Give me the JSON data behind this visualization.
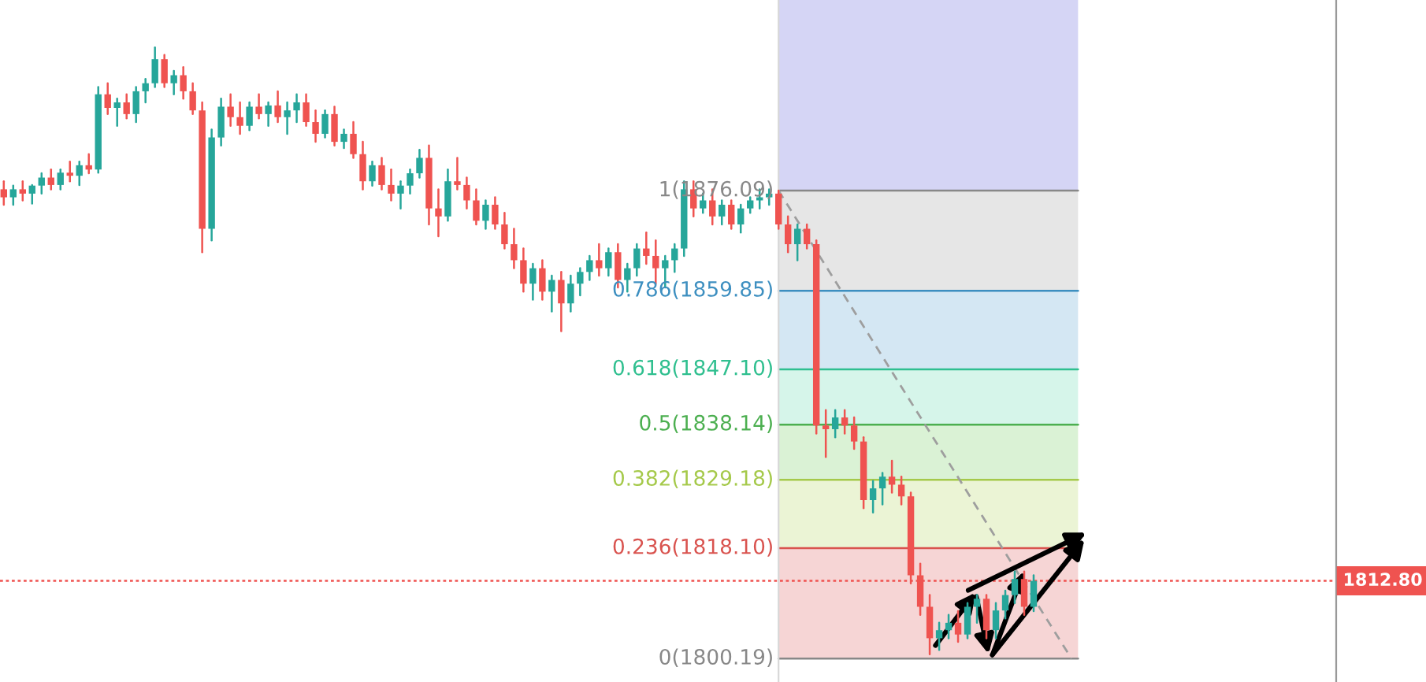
{
  "chart_data": {
    "type": "candlestick",
    "categories": [
      null,
      null,
      null,
      null,
      null,
      null,
      null,
      null,
      null,
      null,
      null,
      null,
      null,
      null,
      null,
      null,
      null,
      null,
      null,
      null,
      null,
      null,
      null,
      null,
      null,
      null,
      null,
      null,
      null,
      null,
      null,
      null,
      null,
      null,
      null,
      null,
      null,
      null,
      null,
      null,
      null,
      null,
      null,
      null,
      null,
      null,
      null,
      null,
      null,
      null,
      null,
      null,
      null,
      null,
      null,
      null,
      null,
      null,
      null,
      null,
      null,
      null,
      null,
      null,
      null,
      null,
      null,
      null,
      null,
      null,
      null,
      null,
      null,
      null,
      null,
      null,
      null,
      null,
      null,
      null,
      null,
      null,
      null,
      null,
      null,
      null,
      null,
      null,
      null,
      null,
      null,
      null,
      null,
      null,
      null,
      null,
      null,
      null,
      null,
      null,
      null,
      null,
      null,
      null,
      null,
      null,
      null,
      null,
      null,
      null,
      null,
      null,
      null,
      null
    ],
    "ohlc": [
      [
        1876.3,
        1877.6,
        1873.8,
        1875.0
      ],
      [
        1875.0,
        1876.9,
        1873.8,
        1876.3
      ],
      [
        1876.3,
        1877.6,
        1874.5,
        1875.6
      ],
      [
        1875.6,
        1877.0,
        1874.0,
        1876.9
      ],
      [
        1876.9,
        1878.9,
        1875.6,
        1878.2
      ],
      [
        1878.2,
        1879.5,
        1876.3,
        1877.0
      ],
      [
        1877.0,
        1879.5,
        1876.3,
        1879.0
      ],
      [
        1879.0,
        1880.8,
        1877.6,
        1878.5
      ],
      [
        1878.5,
        1880.8,
        1877.0,
        1880.2
      ],
      [
        1880.2,
        1882.0,
        1878.9,
        1879.5
      ],
      [
        1879.5,
        1892.9,
        1879.0,
        1891.7
      ],
      [
        1891.7,
        1893.5,
        1888.5,
        1889.5
      ],
      [
        1889.5,
        1891.0,
        1886.6,
        1890.4
      ],
      [
        1890.4,
        1891.7,
        1887.8,
        1888.5
      ],
      [
        1888.5,
        1892.9,
        1887.2,
        1892.2
      ],
      [
        1892.2,
        1894.2,
        1890.4,
        1893.5
      ],
      [
        1893.5,
        1899.3,
        1892.9,
        1897.4
      ],
      [
        1897.4,
        1898.1,
        1892.9,
        1893.5
      ],
      [
        1893.5,
        1895.5,
        1891.7,
        1894.8
      ],
      [
        1894.8,
        1896.1,
        1891.0,
        1892.2
      ],
      [
        1892.2,
        1893.5,
        1888.5,
        1889.1
      ],
      [
        1889.1,
        1890.4,
        1866.1,
        1869.9
      ],
      [
        1869.9,
        1886.0,
        1868.0,
        1884.7
      ],
      [
        1884.7,
        1891.0,
        1883.4,
        1889.7
      ],
      [
        1889.7,
        1891.7,
        1886.6,
        1888.0
      ],
      [
        1888.0,
        1890.4,
        1885.3,
        1886.6
      ],
      [
        1886.6,
        1890.4,
        1885.9,
        1889.7
      ],
      [
        1889.7,
        1891.7,
        1887.8,
        1888.5
      ],
      [
        1888.5,
        1890.4,
        1886.6,
        1889.9
      ],
      [
        1889.9,
        1892.2,
        1887.2,
        1888.0
      ],
      [
        1888.0,
        1890.4,
        1885.3,
        1889.1
      ],
      [
        1889.1,
        1891.7,
        1887.2,
        1890.4
      ],
      [
        1890.4,
        1891.7,
        1886.6,
        1887.2
      ],
      [
        1887.2,
        1889.1,
        1884.0,
        1885.3
      ],
      [
        1885.3,
        1889.1,
        1884.7,
        1888.5
      ],
      [
        1888.5,
        1889.7,
        1883.4,
        1884.0
      ],
      [
        1884.0,
        1886.0,
        1883.0,
        1885.3
      ],
      [
        1885.3,
        1887.2,
        1881.4,
        1882.0
      ],
      [
        1882.0,
        1884.0,
        1876.3,
        1877.6
      ],
      [
        1877.6,
        1880.8,
        1876.9,
        1880.2
      ],
      [
        1880.2,
        1881.4,
        1876.3,
        1877.0
      ],
      [
        1877.0,
        1879.5,
        1874.5,
        1875.6
      ],
      [
        1875.6,
        1877.6,
        1873.2,
        1876.9
      ],
      [
        1876.9,
        1879.5,
        1875.6,
        1878.9
      ],
      [
        1878.9,
        1882.7,
        1878.2,
        1881.4
      ],
      [
        1881.4,
        1883.4,
        1870.6,
        1873.2
      ],
      [
        1873.2,
        1876.3,
        1868.7,
        1871.9
      ],
      [
        1871.9,
        1879.5,
        1871.2,
        1877.6
      ],
      [
        1877.6,
        1881.4,
        1876.3,
        1877.0
      ],
      [
        1877.0,
        1878.2,
        1873.2,
        1874.5
      ],
      [
        1874.5,
        1876.3,
        1870.6,
        1871.2
      ],
      [
        1871.2,
        1874.5,
        1869.9,
        1873.8
      ],
      [
        1873.8,
        1875.0,
        1869.9,
        1870.6
      ],
      [
        1870.6,
        1872.5,
        1866.7,
        1867.4
      ],
      [
        1867.4,
        1869.9,
        1863.5,
        1864.8
      ],
      [
        1864.8,
        1866.7,
        1859.7,
        1861.0
      ],
      [
        1861.0,
        1864.2,
        1858.4,
        1863.5
      ],
      [
        1863.5,
        1864.8,
        1858.4,
        1859.7
      ],
      [
        1859.7,
        1862.3,
        1856.5,
        1861.6
      ],
      [
        1861.6,
        1862.9,
        1853.3,
        1857.8
      ],
      [
        1857.8,
        1862.3,
        1856.5,
        1861.0
      ],
      [
        1861.0,
        1863.5,
        1859.1,
        1862.9
      ],
      [
        1862.9,
        1865.5,
        1861.6,
        1864.8
      ],
      [
        1864.8,
        1867.4,
        1862.3,
        1863.5
      ],
      [
        1863.5,
        1866.7,
        1862.3,
        1866.1
      ],
      [
        1866.1,
        1867.4,
        1860.4,
        1861.6
      ],
      [
        1861.6,
        1864.2,
        1859.7,
        1863.5
      ],
      [
        1863.5,
        1867.4,
        1862.3,
        1866.7
      ],
      [
        1866.7,
        1869.3,
        1864.2,
        1865.5
      ],
      [
        1865.5,
        1868.0,
        1861.0,
        1863.5
      ],
      [
        1863.5,
        1865.5,
        1860.4,
        1864.8
      ],
      [
        1864.8,
        1867.4,
        1862.9,
        1866.7
      ],
      [
        1866.7,
        1877.6,
        1865.5,
        1876.3
      ],
      [
        1876.3,
        1877.6,
        1871.9,
        1873.2
      ],
      [
        1873.2,
        1875.6,
        1872.5,
        1874.5
      ],
      [
        1874.5,
        1876.3,
        1870.6,
        1871.9
      ],
      [
        1871.9,
        1874.5,
        1870.6,
        1873.8
      ],
      [
        1873.8,
        1874.5,
        1869.9,
        1870.6
      ],
      [
        1870.6,
        1873.8,
        1869.3,
        1873.2
      ],
      [
        1873.2,
        1875.0,
        1872.5,
        1874.5
      ],
      [
        1874.5,
        1876.3,
        1873.2,
        1875.0
      ],
      [
        1875.0,
        1876.3,
        1873.8,
        1875.6
      ],
      [
        1875.6,
        1876.1,
        1869.9,
        1870.6
      ],
      [
        1870.6,
        1871.9,
        1866.1,
        1867.4
      ],
      [
        1867.4,
        1870.6,
        1864.8,
        1869.9
      ],
      [
        1869.9,
        1870.6,
        1866.7,
        1867.4
      ],
      [
        1867.4,
        1868.0,
        1836.7,
        1838.0
      ],
      [
        1838.0,
        1840.5,
        1832.9,
        1837.4
      ],
      [
        1837.4,
        1840.5,
        1836.1,
        1839.3
      ],
      [
        1839.3,
        1840.5,
        1836.7,
        1838.0
      ],
      [
        1838.0,
        1839.3,
        1834.2,
        1835.4
      ],
      [
        1835.4,
        1836.1,
        1824.6,
        1825.9
      ],
      [
        1825.9,
        1829.0,
        1823.9,
        1827.8
      ],
      [
        1827.8,
        1830.3,
        1825.2,
        1829.7
      ],
      [
        1829.7,
        1832.3,
        1827.1,
        1828.4
      ],
      [
        1828.4,
        1829.7,
        1825.2,
        1826.5
      ],
      [
        1826.5,
        1827.1,
        1812.4,
        1813.7
      ],
      [
        1813.7,
        1815.6,
        1807.3,
        1808.6
      ],
      [
        1808.6,
        1810.5,
        1800.9,
        1803.5
      ],
      [
        1803.5,
        1806.0,
        1801.6,
        1804.8
      ],
      [
        1804.8,
        1807.3,
        1803.5,
        1806.0
      ],
      [
        1806.0,
        1807.9,
        1802.9,
        1804.1
      ],
      [
        1804.1,
        1809.2,
        1803.5,
        1808.6
      ],
      [
        1808.6,
        1810.5,
        1806.0,
        1809.9
      ],
      [
        1809.9,
        1810.5,
        1803.5,
        1804.8
      ],
      [
        1804.8,
        1809.2,
        1803.5,
        1808.0
      ],
      [
        1808.0,
        1811.2,
        1806.7,
        1810.5
      ],
      [
        1810.5,
        1814.3,
        1809.2,
        1813.1
      ],
      [
        1813.1,
        1814.3,
        1807.3,
        1808.6
      ],
      [
        1808.6,
        1813.7,
        1807.9,
        1812.8
      ],
      null,
      null,
      null,
      null
    ],
    "colors": [
      "#ef5350",
      "#26a69a",
      "#ef5350",
      "#26a69a",
      "#26a69a",
      "#ef5350",
      "#26a69a",
      "#ef5350",
      "#26a69a",
      "#ef5350",
      "#26a69a",
      "#ef5350",
      "#26a69a",
      "#ef5350",
      "#26a69a",
      "#26a69a",
      "#26a69a",
      "#ef5350",
      "#26a69a",
      "#ef5350",
      "#ef5350",
      "#ef5350",
      "#26a69a",
      "#26a69a",
      "#ef5350",
      "#ef5350",
      "#26a69a",
      "#ef5350",
      "#26a69a",
      "#ef5350",
      "#26a69a",
      "#26a69a",
      "#ef5350",
      "#ef5350",
      "#26a69a",
      "#ef5350",
      "#26a69a",
      "#ef5350",
      "#ef5350",
      "#26a69a",
      "#ef5350",
      "#ef5350",
      "#26a69a",
      "#26a69a",
      "#26a69a",
      "#ef5350",
      "#ef5350",
      "#26a69a",
      "#ef5350",
      "#ef5350",
      "#ef5350",
      "#26a69a",
      "#ef5350",
      "#ef5350",
      "#ef5350",
      "#ef5350",
      "#26a69a",
      "#ef5350",
      "#26a69a",
      "#ef5350",
      "#26a69a",
      "#26a69a",
      "#26a69a",
      "#ef5350",
      "#26a69a",
      "#ef5350",
      "#26a69a",
      "#26a69a",
      "#ef5350",
      "#ef5350",
      "#26a69a",
      "#26a69a",
      "#26a69a",
      "#ef5350",
      "#26a69a",
      "#ef5350",
      "#26a69a",
      "#ef5350",
      "#26a69a",
      "#26a69a",
      "#26a69a",
      "#26a69a",
      "#ef5350",
      "#ef5350",
      "#26a69a",
      "#ef5350",
      "#ef5350",
      "#ef5350",
      "#26a69a",
      "#ef5350",
      "#ef5350",
      "#ef5350",
      "#26a69a",
      "#26a69a",
      "#ef5350",
      "#ef5350",
      "#ef5350",
      "#ef5350",
      "#ef5350",
      "#26a69a",
      "#26a69a",
      "#ef5350",
      "#26a69a",
      "#26a69a",
      "#ef5350",
      "#26a69a",
      "#26a69a",
      "#26a69a",
      "#ef5350",
      "#26a69a",
      null,
      null,
      null,
      null
    ],
    "series": [
      {
        "type": "line",
        "values": [
          null,
          null,
          null,
          null,
          null,
          null,
          null,
          null,
          null,
          null,
          null,
          null,
          null,
          null,
          null,
          null,
          null,
          null,
          null,
          null,
          null,
          null,
          null,
          null,
          null,
          null,
          null,
          null,
          null,
          null,
          null,
          null,
          null,
          null,
          null,
          null,
          null,
          null,
          null,
          null,
          null,
          null,
          null,
          null,
          null,
          null,
          null,
          null,
          null,
          null,
          null,
          null,
          null,
          null,
          null,
          null,
          null,
          null,
          null,
          null,
          null,
          null,
          null,
          null,
          null,
          null,
          null,
          null,
          null,
          null,
          null,
          null,
          null,
          null,
          null,
          null,
          null,
          null,
          null,
          null,
          null,
          null,
          1876.1,
          null,
          null,
          null,
          null,
          null,
          null,
          null,
          null,
          null,
          null,
          null,
          null,
          null,
          null,
          null,
          null,
          null,
          null,
          null,
          null,
          null,
          null,
          null,
          null,
          null,
          null,
          null,
          null,
          null,
          null,
          1800.2
        ],
        "color": "#9e9e9e",
        "line_style": "dashed"
      }
    ],
    "ylim": [
      1796.4,
      1907.0
    ],
    "tick_labels": false,
    "grid": false,
    "ref_lines": [
      {
        "axis": "y",
        "value": 1876.09,
        "label": "1(1876.09)",
        "color": "#888888"
      },
      {
        "axis": "y",
        "value": 1859.85,
        "label": "0.786(1859.85)",
        "color": "#3d8fc0"
      },
      {
        "axis": "y",
        "value": 1847.1,
        "label": "0.618(1847.10)",
        "color": "#2fbf8f"
      },
      {
        "axis": "y",
        "value": 1838.14,
        "label": "0.5(1838.14)",
        "color": "#4caf50"
      },
      {
        "axis": "y",
        "value": 1829.18,
        "label": "0.382(1829.18)",
        "color": "#a5c94a"
      },
      {
        "axis": "y",
        "value": 1818.1,
        "label": "0.236(1818.10)",
        "color": "#d9534f"
      },
      {
        "axis": "y",
        "value": 1800.19,
        "label": "0(1800.19)",
        "color": "#888888"
      },
      {
        "axis": "y",
        "value": 1812.8,
        "label": "1812.80",
        "color": "#ef5350",
        "line_style": "dotted"
      }
    ],
    "bands": [
      {
        "axis": "y",
        "from": 1876.09,
        "to": 1907.0,
        "color": "#d5d5f5"
      },
      {
        "axis": "y",
        "from": 1859.85,
        "to": 1876.09,
        "color": "#e6e6e6"
      },
      {
        "axis": "y",
        "from": 1847.1,
        "to": 1859.85,
        "color": "#d4e7f3"
      },
      {
        "axis": "y",
        "from": 1838.14,
        "to": 1847.1,
        "color": "#d6f5ea"
      },
      {
        "axis": "y",
        "from": 1829.18,
        "to": 1838.14,
        "color": "#daf2d5"
      },
      {
        "axis": "y",
        "from": 1818.1,
        "to": 1829.18,
        "color": "#ebf4d5"
      },
      {
        "axis": "y",
        "from": 1800.19,
        "to": 1818.1,
        "color": "#f6d5d5"
      }
    ]
  }
}
